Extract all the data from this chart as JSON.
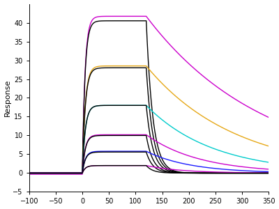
{
  "ylabel": "Response",
  "xlim": [
    -100,
    350
  ],
  "ylim": [
    -5,
    45
  ],
  "xticks": [
    -100,
    -50,
    0,
    50,
    100,
    150,
    200,
    250,
    300,
    350
  ],
  "yticks": [
    -5,
    0,
    5,
    10,
    15,
    20,
    25,
    30,
    35,
    40
  ],
  "t_assoc_start": 0,
  "t_assoc_end": 120,
  "t_dissoc_end": 300,
  "background_color": "#ffffff",
  "linewidth": 1.0,
  "curves": [
    {
      "color": "#cc00cc",
      "Rmax": 42.0,
      "ka": 0.2,
      "kd": 0.0045,
      "is_fit": false,
      "baseline": -0.3
    },
    {
      "color": "#000000",
      "Rmax": 40.5,
      "ka": 0.2,
      "kd": 0.0045,
      "is_fit": true,
      "baseline": 0.0
    },
    {
      "color": "#e6a817",
      "Rmax": 28.5,
      "ka": 0.18,
      "kd": 0.006,
      "is_fit": false,
      "baseline": 0.0
    },
    {
      "color": "#000000",
      "Rmax": 28.0,
      "ka": 0.18,
      "kd": 0.006,
      "is_fit": true,
      "baseline": 0.0
    },
    {
      "color": "#00cccc",
      "Rmax": 18.0,
      "ka": 0.18,
      "kd": 0.008,
      "is_fit": false,
      "baseline": 0.0
    },
    {
      "color": "#000000",
      "Rmax": 18.0,
      "ka": 0.18,
      "kd": 0.008,
      "is_fit": true,
      "baseline": 0.0
    },
    {
      "color": "#cc00cc",
      "Rmax": 10.2,
      "ka": 0.18,
      "kd": 0.01,
      "is_fit": false,
      "baseline": 0.0
    },
    {
      "color": "#000000",
      "Rmax": 10.0,
      "ka": 0.18,
      "kd": 0.01,
      "is_fit": true,
      "baseline": 0.0
    },
    {
      "color": "#1a1aff",
      "Rmax": 5.8,
      "ka": 0.18,
      "kd": 0.012,
      "is_fit": false,
      "baseline": 0.0
    },
    {
      "color": "#000000",
      "Rmax": 5.6,
      "ka": 0.18,
      "kd": 0.012,
      "is_fit": true,
      "baseline": 0.0
    },
    {
      "color": "#cc00cc",
      "Rmax": 2.0,
      "ka": 0.18,
      "kd": 0.015,
      "is_fit": false,
      "baseline": 0.0
    },
    {
      "color": "#000000",
      "Rmax": 2.0,
      "ka": 0.18,
      "kd": 0.015,
      "is_fit": true,
      "baseline": 0.0
    }
  ]
}
